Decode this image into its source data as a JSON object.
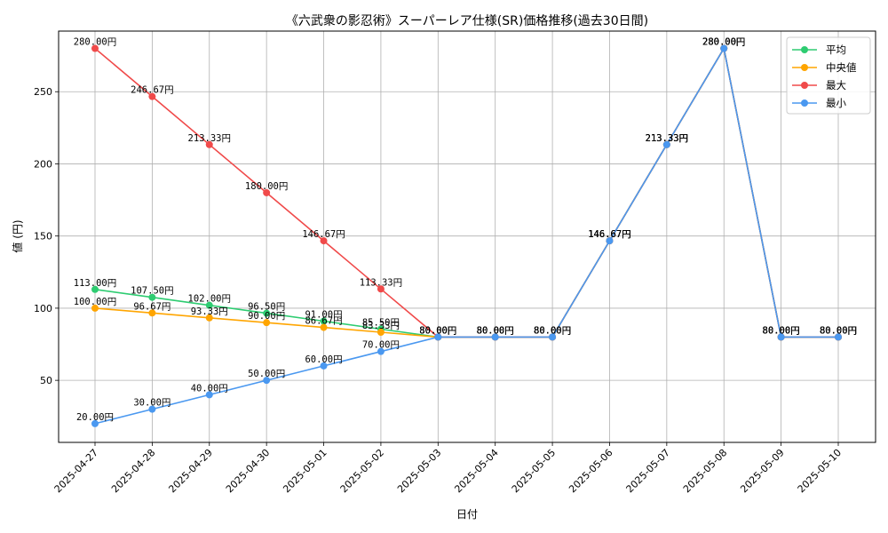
{
  "chart_data": {
    "type": "line",
    "title": "《六武衆の影忍術》スーパーレア仕様(SR)価格推移(過去30日間)",
    "xlabel": "日付",
    "ylabel": "値 (円)",
    "ylim": [
      7,
      292
    ],
    "yticks": [
      50,
      100,
      150,
      200,
      250
    ],
    "grid": true,
    "legend_position": "top-right",
    "label_suffix": "円",
    "categories": [
      "2025-04-27",
      "2025-04-28",
      "2025-04-29",
      "2025-04-30",
      "2025-05-01",
      "2025-05-02",
      "2025-05-03",
      "2025-05-04",
      "2025-05-05",
      "2025-05-06",
      "2025-05-07",
      "2025-05-08",
      "2025-05-09",
      "2025-05-10"
    ],
    "series": [
      {
        "name": "平均",
        "color": "#2ecc71",
        "values": [
          113.0,
          107.5,
          102.0,
          96.5,
          91.0,
          85.5,
          80.0,
          80.0,
          80.0,
          146.67,
          213.33,
          280.0,
          80.0,
          80.0
        ]
      },
      {
        "name": "中央値",
        "color": "#ffa500",
        "values": [
          100.0,
          96.67,
          93.33,
          90.0,
          86.67,
          83.33,
          80.0,
          80.0,
          80.0,
          146.67,
          213.33,
          280.0,
          80.0,
          80.0
        ]
      },
      {
        "name": "最大",
        "color": "#f04a4a",
        "values": [
          280.0,
          246.67,
          213.33,
          180.0,
          146.67,
          113.33,
          80.0,
          80.0,
          80.0,
          146.67,
          213.33,
          280.0,
          80.0,
          80.0
        ]
      },
      {
        "name": "最小",
        "color": "#4a98f0",
        "values": [
          20.0,
          30.0,
          40.0,
          50.0,
          60.0,
          70.0,
          80.0,
          80.0,
          80.0,
          146.67,
          213.33,
          280.0,
          80.0,
          80.0
        ]
      }
    ]
  }
}
